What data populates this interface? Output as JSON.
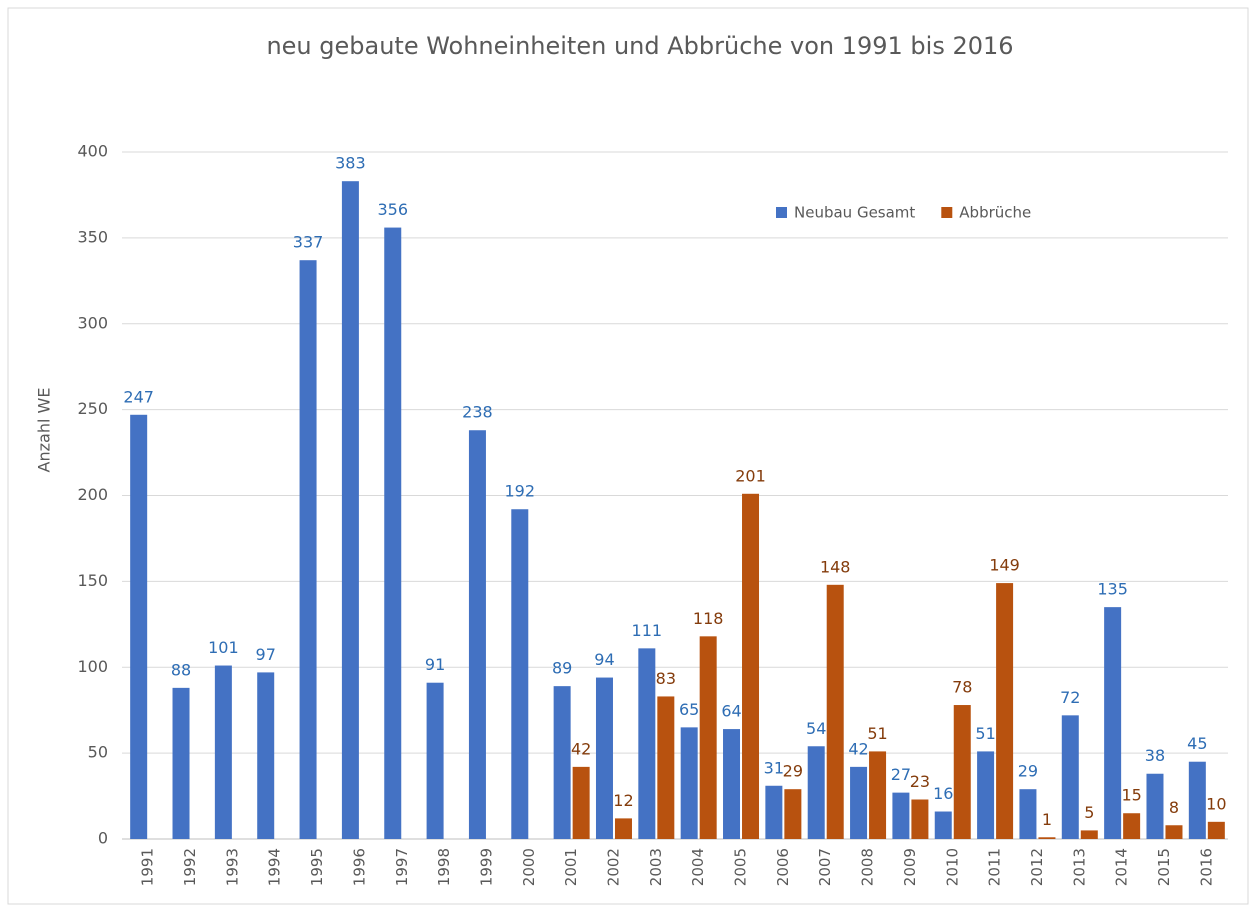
{
  "chart_data": {
    "type": "bar",
    "title": "neu gebaute Wohneinheiten und Abbrüche von 1991 bis 2016",
    "y_label": "Anzahl WE",
    "categories": [
      "1991",
      "1992",
      "1993",
      "1994",
      "1995",
      "1996",
      "1997",
      "1998",
      "1999",
      "2000",
      "2001",
      "2002",
      "2003",
      "2004",
      "2005",
      "2006",
      "2007",
      "2008",
      "2009",
      "2010",
      "2011",
      "2012",
      "2013",
      "2014",
      "2015",
      "2016"
    ],
    "series": [
      {
        "name": "Neubau Gesamt",
        "color": "#4472c4",
        "label_color": "#2e6db4",
        "values": [
          247,
          88,
          101,
          97,
          337,
          383,
          356,
          91,
          238,
          192,
          89,
          94,
          111,
          65,
          64,
          31,
          54,
          42,
          27,
          16,
          51,
          29,
          72,
          135,
          38,
          45
        ]
      },
      {
        "name": "Abbrüche",
        "color": "#b8520f",
        "label_color": "#843c0c",
        "values": [
          null,
          null,
          null,
          null,
          null,
          null,
          null,
          null,
          null,
          null,
          42,
          12,
          83,
          118,
          201,
          29,
          148,
          51,
          23,
          78,
          149,
          1,
          5,
          15,
          8,
          10
        ]
      }
    ],
    "ylim": [
      0,
      400
    ],
    "yticks": [
      0,
      50,
      100,
      150,
      200,
      250,
      300,
      350,
      400
    ],
    "grid": true,
    "legend": "top-right"
  }
}
